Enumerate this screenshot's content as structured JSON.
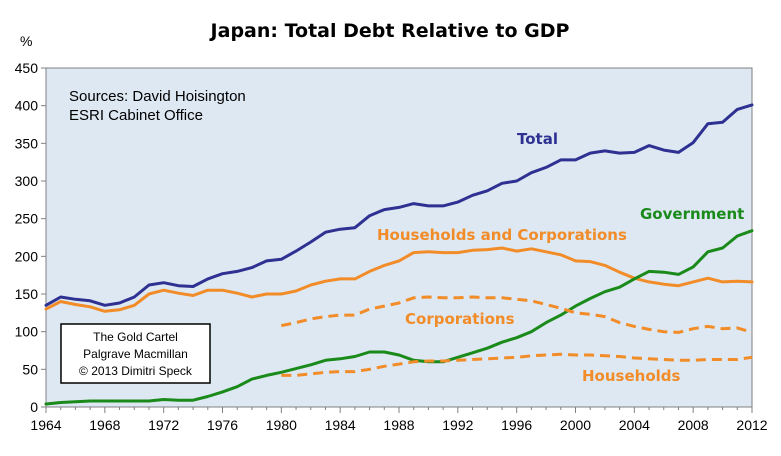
{
  "chart_data": {
    "type": "line",
    "title": "Japan: Total Debt Relative to GDP",
    "unit_label": "%",
    "ylim": [
      0,
      450
    ],
    "y_ticks": [
      0,
      50,
      100,
      150,
      200,
      250,
      300,
      350,
      400,
      450
    ],
    "xlim": [
      1964,
      2012
    ],
    "x_ticks": [
      1964,
      1968,
      1972,
      1976,
      1980,
      1984,
      1988,
      1992,
      1996,
      2000,
      2004,
      2008,
      2012
    ],
    "grid": false,
    "plot_background": "#dde8f2",
    "source_lines": [
      "Sources: David Hoisington",
      "ESRI Cabinet Office"
    ],
    "credit_lines": [
      "The Gold Cartel",
      "Palgrave Macmillan",
      "© 2013 Dimitri Speck"
    ],
    "series": [
      {
        "name": "Total",
        "color": "#2e3192",
        "dash": "solid",
        "x": [
          1964,
          1965,
          1966,
          1967,
          1968,
          1969,
          1970,
          1971,
          1972,
          1973,
          1974,
          1975,
          1976,
          1977,
          1978,
          1979,
          1980,
          1981,
          1982,
          1983,
          1984,
          1985,
          1986,
          1987,
          1988,
          1989,
          1990,
          1991,
          1992,
          1993,
          1994,
          1995,
          1996,
          1997,
          1998,
          1999,
          2000,
          2001,
          2002,
          2003,
          2004,
          2005,
          2006,
          2007,
          2008,
          2009,
          2010,
          2011,
          2012
        ],
        "values": [
          135,
          146,
          143,
          141,
          135,
          138,
          146,
          162,
          165,
          161,
          160,
          170,
          177,
          180,
          185,
          194,
          196,
          207,
          219,
          232,
          236,
          238,
          254,
          262,
          265,
          270,
          267,
          267,
          272,
          281,
          287,
          297,
          300,
          311,
          318,
          328,
          328,
          337,
          340,
          337,
          338,
          347,
          341,
          338,
          351,
          376,
          378,
          395,
          401
        ]
      },
      {
        "name": "Households and Corporations",
        "color": "#f28c28",
        "dash": "solid",
        "x": [
          1964,
          1965,
          1966,
          1967,
          1968,
          1969,
          1970,
          1971,
          1972,
          1973,
          1974,
          1975,
          1976,
          1977,
          1978,
          1979,
          1980,
          1981,
          1982,
          1983,
          1984,
          1985,
          1986,
          1987,
          1988,
          1989,
          1990,
          1991,
          1992,
          1993,
          1994,
          1995,
          1996,
          1997,
          1998,
          1999,
          2000,
          2001,
          2002,
          2003,
          2004,
          2005,
          2006,
          2007,
          2008,
          2009,
          2010,
          2011,
          2012
        ],
        "values": [
          130,
          140,
          136,
          133,
          127,
          129,
          135,
          150,
          155,
          151,
          148,
          155,
          155,
          151,
          146,
          150,
          150,
          154,
          162,
          167,
          170,
          170,
          180,
          188,
          194,
          205,
          206,
          205,
          205,
          208,
          209,
          211,
          207,
          210,
          206,
          202,
          194,
          193,
          188,
          179,
          171,
          166,
          163,
          161,
          166,
          171,
          166,
          167,
          166
        ]
      },
      {
        "name": "Government",
        "color": "#1a8a1a",
        "dash": "solid",
        "x": [
          1964,
          1965,
          1966,
          1967,
          1968,
          1969,
          1970,
          1971,
          1972,
          1973,
          1974,
          1975,
          1976,
          1977,
          1978,
          1979,
          1980,
          1981,
          1982,
          1983,
          1984,
          1985,
          1986,
          1987,
          1988,
          1989,
          1990,
          1991,
          1992,
          1993,
          1994,
          1995,
          1996,
          1997,
          1998,
          1999,
          2000,
          2001,
          2002,
          2003,
          2004,
          2005,
          2006,
          2007,
          2008,
          2009,
          2010,
          2011,
          2012
        ],
        "values": [
          4,
          6,
          7,
          8,
          8,
          8,
          8,
          8,
          10,
          9,
          9,
          14,
          20,
          27,
          37,
          42,
          46,
          51,
          56,
          62,
          64,
          67,
          73,
          73,
          69,
          62,
          60,
          60,
          66,
          72,
          78,
          86,
          92,
          100,
          112,
          122,
          134,
          144,
          153,
          159,
          170,
          180,
          179,
          176,
          186,
          206,
          211,
          227,
          234
        ]
      },
      {
        "name": "Corporations",
        "color": "#f28c28",
        "dash": "dashed",
        "x": [
          1980,
          1981,
          1982,
          1983,
          1984,
          1985,
          1986,
          1987,
          1988,
          1989,
          1990,
          1991,
          1992,
          1993,
          1994,
          1995,
          1996,
          1997,
          1998,
          1999,
          2000,
          2001,
          2002,
          2003,
          2004,
          2005,
          2006,
          2007,
          2008,
          2009,
          2010,
          2011,
          2012
        ],
        "values": [
          108,
          112,
          117,
          120,
          122,
          122,
          130,
          134,
          138,
          145,
          146,
          145,
          145,
          146,
          145,
          145,
          143,
          141,
          136,
          131,
          125,
          123,
          120,
          112,
          107,
          103,
          100,
          99,
          104,
          107,
          104,
          105,
          99
        ]
      },
      {
        "name": "Households",
        "color": "#f28c28",
        "dash": "dashed",
        "x": [
          1980,
          1981,
          1982,
          1983,
          1984,
          1985,
          1986,
          1987,
          1988,
          1989,
          1990,
          1991,
          1992,
          1993,
          1994,
          1995,
          1996,
          1997,
          1998,
          1999,
          2000,
          2001,
          2002,
          2003,
          2004,
          2005,
          2006,
          2007,
          2008,
          2009,
          2010,
          2011,
          2012
        ],
        "values": [
          42,
          42,
          44,
          46,
          47,
          47,
          50,
          54,
          57,
          60,
          61,
          61,
          62,
          63,
          64,
          65,
          66,
          68,
          69,
          70,
          69,
          69,
          68,
          67,
          65,
          64,
          63,
          62,
          62,
          63,
          63,
          63,
          66
        ]
      }
    ]
  }
}
